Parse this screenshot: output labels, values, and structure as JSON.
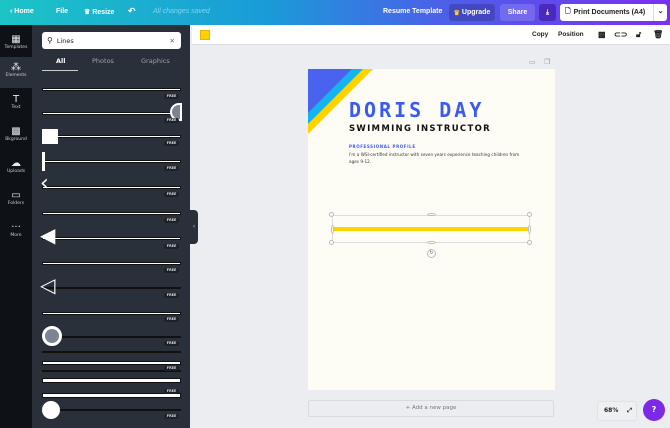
{
  "topbar": {
    "home": "Home",
    "file": "File",
    "resize": "Resize",
    "status": "All changes saved",
    "template_name": "Resume Template",
    "upgrade": "Upgrade",
    "share": "Share",
    "print": "Print Documents (A4)"
  },
  "rail": [
    {
      "label": "Templates",
      "icon": "template-icon"
    },
    {
      "label": "Elements",
      "icon": "shapes-icon"
    },
    {
      "label": "Text",
      "icon": "text-icon"
    },
    {
      "label": "Bkground",
      "icon": "background-icon"
    },
    {
      "label": "Uploads",
      "icon": "upload-icon"
    },
    {
      "label": "Folders",
      "icon": "folder-icon"
    },
    {
      "label": "More",
      "icon": "more-icon"
    }
  ],
  "panel": {
    "search_value": "Lines",
    "tabs": [
      "All",
      "Photos",
      "Graphics"
    ],
    "badge": "FREE"
  },
  "toolbar": {
    "color": "#ffd200",
    "copy": "Copy",
    "position": "Position"
  },
  "page": {
    "name": "DORIS DAY",
    "title": "SWIMMING INSTRUCTOR",
    "section": "PROFESSIONAL PROFILE",
    "body": "I'm a WSI-certified instructor with seven years experience teaching children from ages 9-12.",
    "line_color": "#ffd200"
  },
  "footer": {
    "add_page": "+ Add a new page",
    "zoom": "68%",
    "help": "?"
  }
}
